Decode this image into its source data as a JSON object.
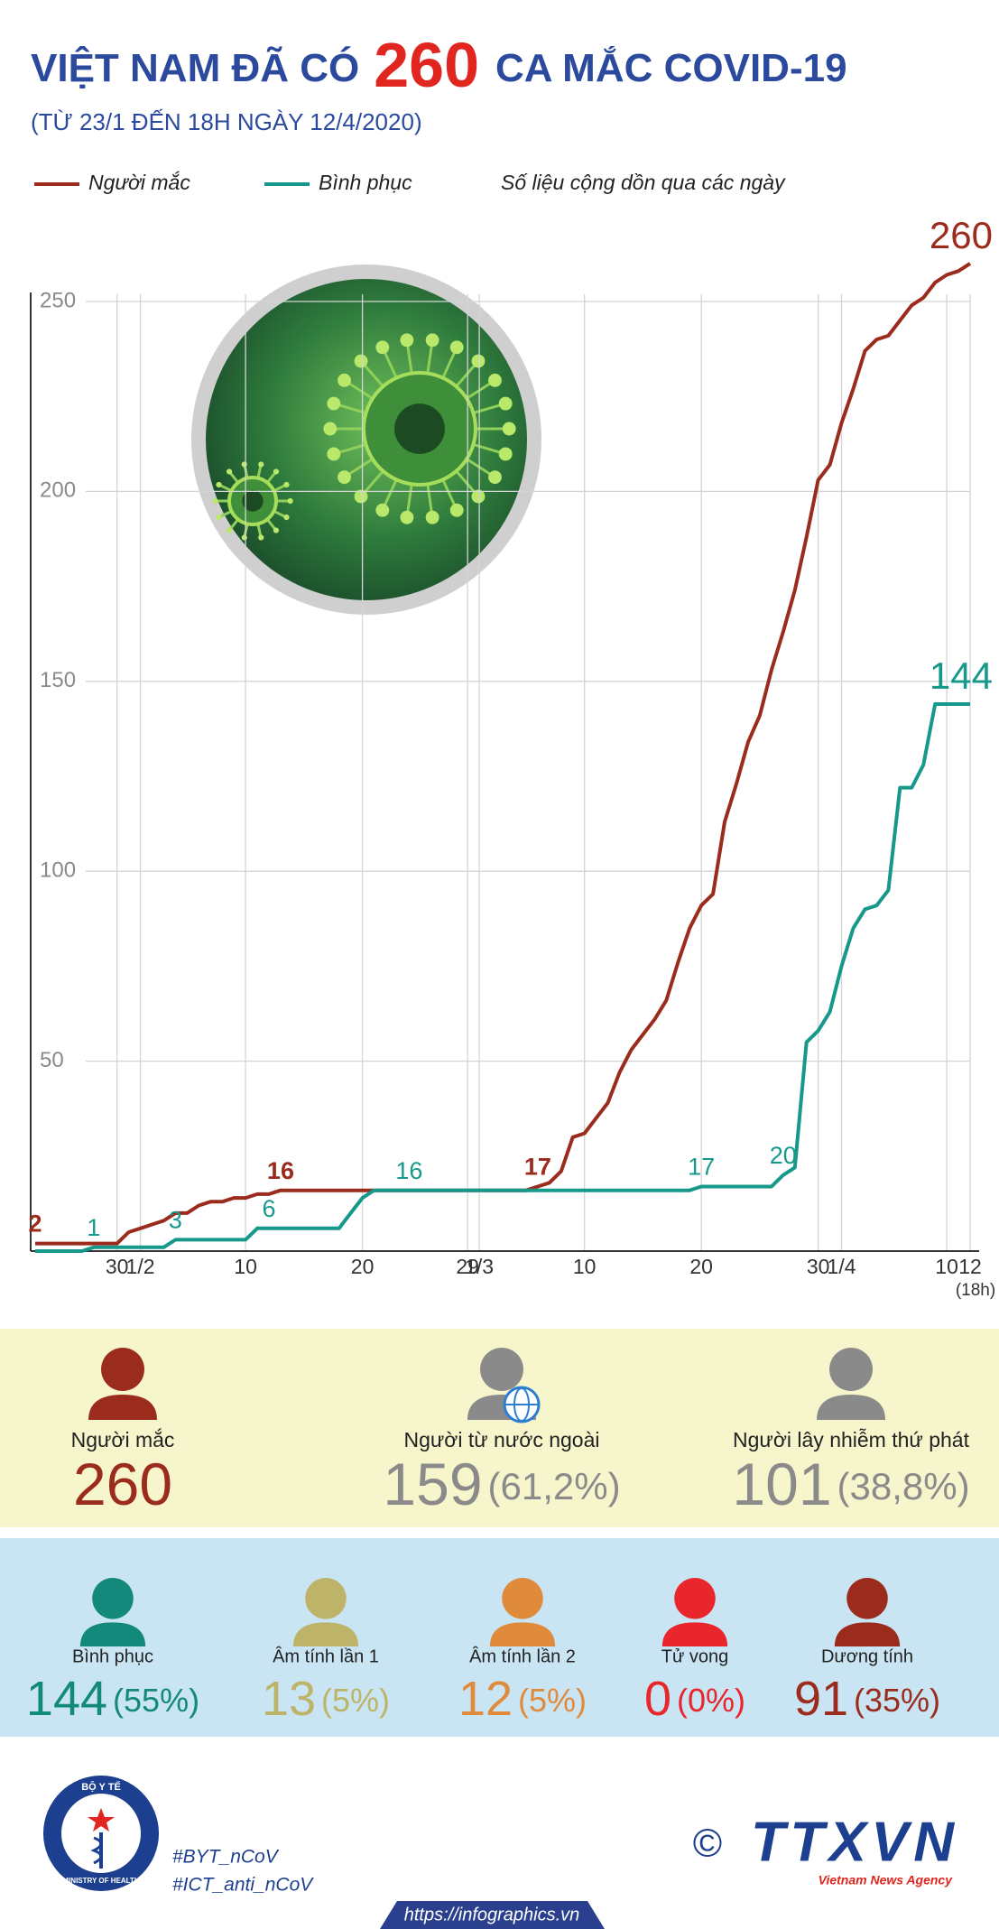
{
  "header": {
    "title_start": "VIỆT NAM ĐÃ CÓ",
    "title_number": "260",
    "title_end": "CA MẮC COVID-19",
    "subtitle": "(TỪ 23/1 ĐẾN 18H NGÀY 12/4/2020)"
  },
  "chart_data": {
    "type": "line",
    "note": "Số liệu cộng dồn qua các ngày",
    "x_note": "(18h)",
    "categories": [
      null,
      null,
      null,
      null,
      null,
      null,
      null,
      "30",
      null,
      "1/2",
      null,
      null,
      null,
      null,
      null,
      null,
      null,
      null,
      "10",
      null,
      null,
      null,
      null,
      null,
      null,
      null,
      null,
      null,
      "20",
      null,
      null,
      null,
      null,
      null,
      null,
      null,
      null,
      "29",
      "1/3",
      null,
      null,
      null,
      null,
      null,
      null,
      null,
      null,
      "10",
      null,
      null,
      null,
      null,
      null,
      null,
      null,
      null,
      null,
      "20",
      null,
      null,
      null,
      null,
      null,
      null,
      null,
      null,
      null,
      "30",
      null,
      "1/4",
      null,
      null,
      null,
      null,
      null,
      null,
      null,
      null,
      "10",
      null,
      "12"
    ],
    "series": [
      {
        "name": "Người mắc",
        "color": "#9b2b1c",
        "labelled_points": [
          0,
          21,
          43,
          80
        ],
        "values": [
          2,
          2,
          2,
          2,
          2,
          2,
          2,
          2,
          5,
          6,
          7,
          8,
          10,
          10,
          12,
          13,
          13,
          14,
          14,
          15,
          15,
          16,
          16,
          16,
          16,
          16,
          16,
          16,
          16,
          16,
          16,
          16,
          16,
          16,
          16,
          16,
          16,
          16,
          16,
          16,
          16,
          16,
          16,
          17,
          18,
          21,
          30,
          31,
          35,
          39,
          47,
          53,
          57,
          61,
          66,
          76,
          85,
          91,
          94,
          113,
          123,
          134,
          141,
          153,
          163,
          174,
          188,
          203,
          207,
          218,
          227,
          237,
          240,
          241,
          245,
          249,
          251,
          255,
          257,
          258,
          260
        ]
      },
      {
        "name": "Bình phục",
        "color": "#16998a",
        "labelled_points": [
          5,
          12,
          20,
          32,
          57,
          64,
          80
        ],
        "values": [
          0,
          0,
          0,
          0,
          0,
          1,
          1,
          1,
          1,
          1,
          1,
          1,
          3,
          3,
          3,
          3,
          3,
          3,
          3,
          6,
          6,
          6,
          6,
          6,
          6,
          6,
          6,
          10,
          14,
          16,
          16,
          16,
          16,
          16,
          16,
          16,
          16,
          16,
          16,
          16,
          16,
          16,
          16,
          16,
          16,
          16,
          16,
          16,
          16,
          16,
          16,
          16,
          16,
          16,
          16,
          16,
          16,
          17,
          17,
          17,
          17,
          17,
          17,
          17,
          20,
          22,
          55,
          58,
          63,
          75,
          85,
          90,
          91,
          95,
          122,
          122,
          128,
          144,
          144,
          144,
          144
        ]
      }
    ],
    "ylim": [
      0,
      250
    ],
    "yticks": [
      50,
      100,
      150,
      200,
      250
    ],
    "grid": true
  },
  "stats": {
    "row1": [
      {
        "label": "Người mắc",
        "number": "260",
        "color": "#9b2b1c",
        "icon_color": "#9b2b1c"
      },
      {
        "label": "Người từ nước ngoài",
        "number": "159",
        "percent": "(61,2%)",
        "color": "#8a8a8a",
        "icon_color": "#8a8a8a"
      },
      {
        "label": "Người lây nhiễm thứ phát",
        "number": "101",
        "percent": "(38,8%)",
        "color": "#8a8a8a",
        "icon_color": "#8a8a8a"
      }
    ],
    "row2": [
      {
        "label": "Bình phục",
        "number": "144",
        "percent": "(55%)",
        "color": "#12897a",
        "icon_color": "#12897a"
      },
      {
        "label": "Âm tính lần 1",
        "number": "13",
        "percent": "(5%)",
        "color": "#bdb46a",
        "icon_color": "#bdb46a"
      },
      {
        "label": "Âm tính lần 2",
        "number": "12",
        "percent": "(5%)",
        "color": "#e08a3c",
        "icon_color": "#e08a3c"
      },
      {
        "label": "Tử vong",
        "number": "0",
        "percent": "(0%)",
        "color": "#e8262b",
        "icon_color": "#e8262b"
      },
      {
        "label": "Dương tính",
        "number": "91",
        "percent": "(35%)",
        "color": "#9b2b1c",
        "icon_color": "#9b2b1c"
      }
    ]
  },
  "footer": {
    "ministry_vn": "BỘ Y TẾ",
    "ministry_en": "MINISTRY OF HEALTH",
    "hashtags": [
      "#BYT_nCoV",
      "#ICT_anti_nCoV"
    ],
    "copyright": "©",
    "agency": "TTXVN",
    "agency_en": "Vietnam News Agency",
    "url": "https://infographics.vn"
  }
}
